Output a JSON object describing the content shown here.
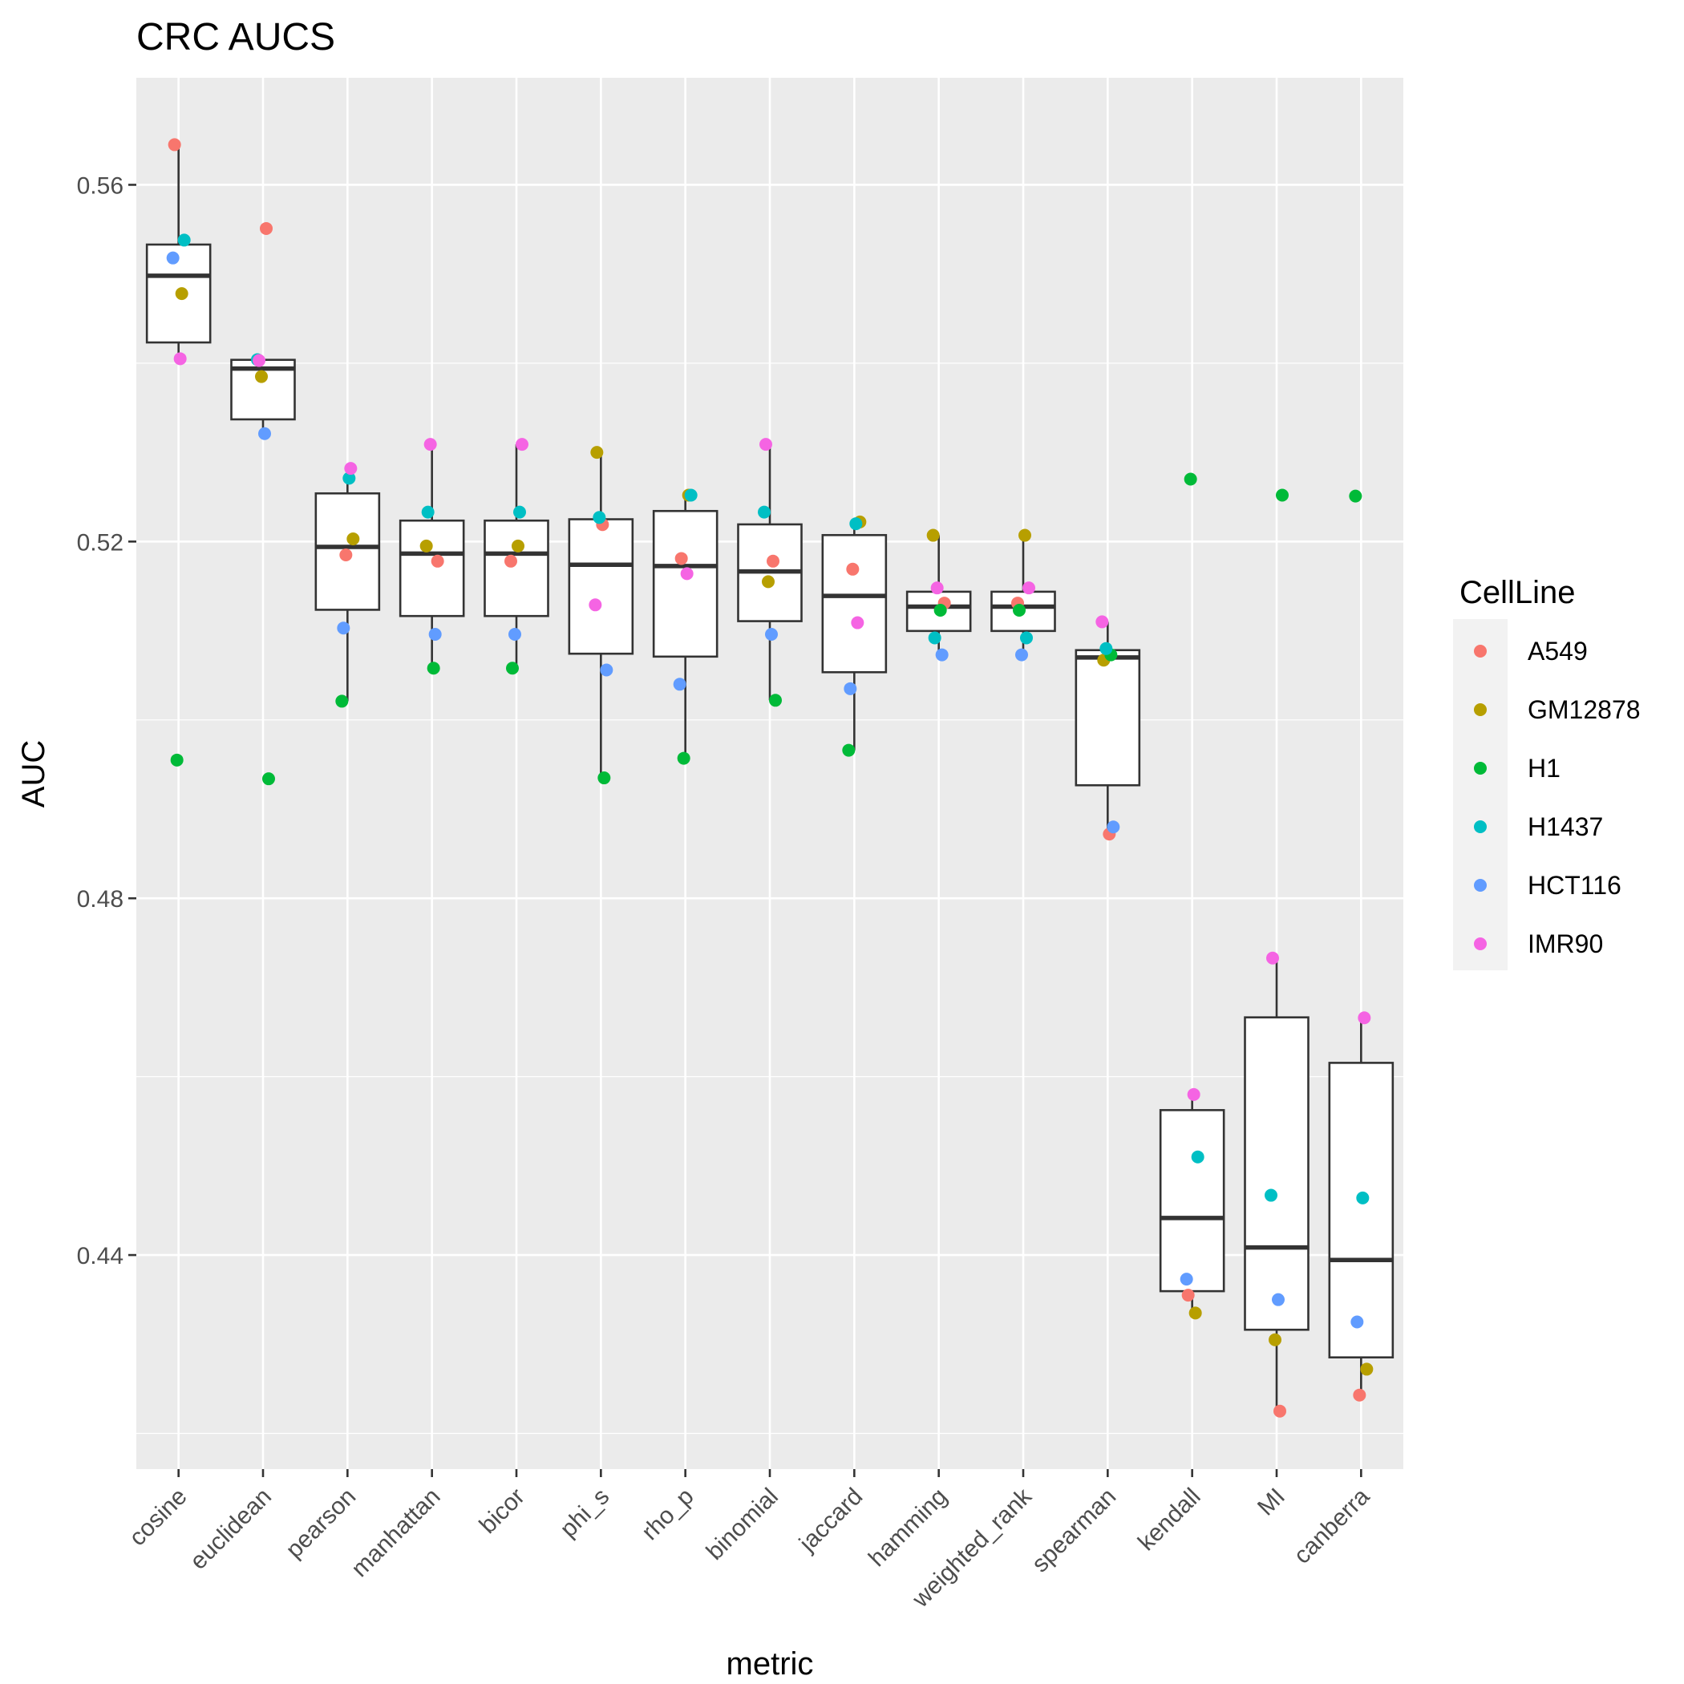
{
  "chart_data": {
    "type": "box",
    "title": "CRC AUCS",
    "xlabel": "metric",
    "ylabel": "AUC",
    "ylim": [
      0.416,
      0.572
    ],
    "yticks": [
      0.44,
      0.48,
      0.52,
      0.56
    ],
    "ytick_labels": [
      "0.44",
      "0.48",
      "0.52",
      "0.56"
    ],
    "grid": true,
    "legend": {
      "title": "CellLine",
      "position": "right"
    },
    "categories": [
      "cosine",
      "euclidean",
      "pearson",
      "manhattan",
      "bicor",
      "phi_s",
      "rho_p",
      "binomial",
      "jaccard",
      "hamming",
      "weighted_rank",
      "spearman",
      "kendall",
      "MI",
      "canberra"
    ],
    "series": [
      {
        "name": "A549",
        "color": "#F8766D",
        "values": [
          0.5645,
          0.5551,
          0.5185,
          0.5178,
          0.5178,
          0.5219,
          0.5181,
          0.5178,
          0.5169,
          0.5131,
          0.5131,
          0.4872,
          0.4355,
          0.4225,
          0.4243
        ]
      },
      {
        "name": "GM12878",
        "color": "#B79F00",
        "values": [
          0.5478,
          0.5385,
          0.5203,
          0.5195,
          0.5195,
          0.53,
          0.5252,
          0.5155,
          0.5222,
          0.5207,
          0.5207,
          0.5067,
          0.4335,
          0.4305,
          0.4272
        ]
      },
      {
        "name": "H1",
        "color": "#00BA38",
        "values": [
          0.4955,
          0.4934,
          0.5021,
          0.5058,
          0.5058,
          0.4935,
          0.4957,
          0.5022,
          0.4966,
          0.5123,
          0.5123,
          0.5073,
          0.527,
          0.5252,
          0.5251
        ]
      },
      {
        "name": "H1437",
        "color": "#00BFC4",
        "values": [
          0.5538,
          0.5404,
          0.5271,
          0.5233,
          0.5233,
          0.5227,
          0.5252,
          0.5233,
          0.522,
          0.5092,
          0.5092,
          0.508,
          0.451,
          0.4467,
          0.4464
        ]
      },
      {
        "name": "HCT116",
        "color": "#619CFF",
        "values": [
          0.5518,
          0.5321,
          0.5103,
          0.5096,
          0.5096,
          0.5056,
          0.504,
          0.5096,
          0.5035,
          0.5073,
          0.5073,
          0.488,
          0.4373,
          0.435,
          0.4325
        ]
      },
      {
        "name": "IMR90",
        "color": "#F564E3",
        "values": [
          0.5405,
          0.5403,
          0.5282,
          0.5309,
          0.5309,
          0.5129,
          0.5164,
          0.5309,
          0.5109,
          0.5148,
          0.5148,
          0.511,
          0.458,
          0.4733,
          0.4666
        ]
      }
    ]
  }
}
